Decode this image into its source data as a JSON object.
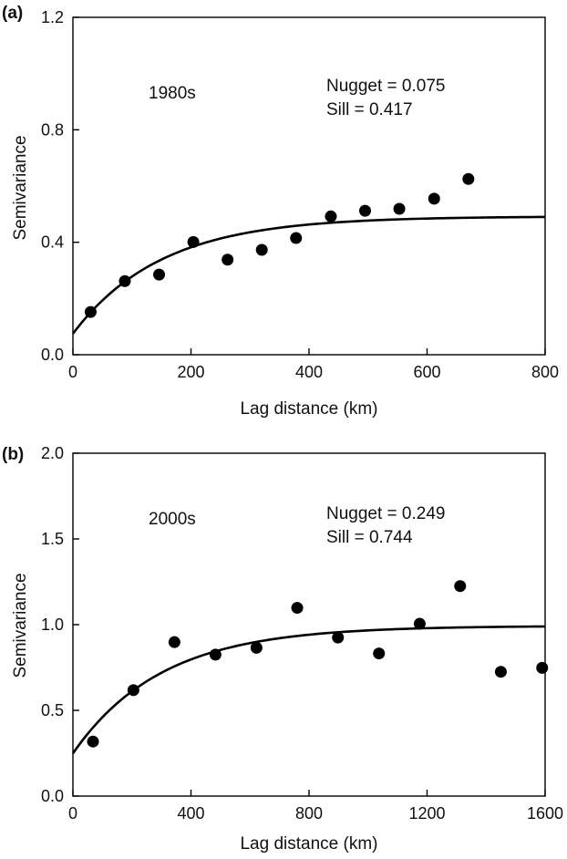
{
  "chart_data": [
    {
      "type": "scatter",
      "panel_label": "(a)",
      "period_label": "1980s",
      "annotations": [
        "Nugget = 0.075",
        "Sill = 0.417"
      ],
      "xlabel": "Lag distance (km)",
      "ylabel": "Semivariance",
      "xlim": [
        0,
        800
      ],
      "ylim": [
        0,
        1.2
      ],
      "x_ticks": [
        0,
        200,
        400,
        600,
        800
      ],
      "x_tick_labels": [
        "0",
        "200",
        "400",
        "600",
        "800"
      ],
      "y_ticks": [
        0.0,
        0.4,
        0.8,
        1.2
      ],
      "y_tick_labels": [
        "0.0",
        "0.4",
        "0.8",
        "1.2"
      ],
      "grid": false,
      "points": {
        "x": [
          30,
          88,
          146,
          204,
          262,
          320,
          378,
          437,
          495,
          553,
          612,
          670
        ],
        "y": [
          0.152,
          0.262,
          0.285,
          0.401,
          0.338,
          0.373,
          0.415,
          0.492,
          0.512,
          0.519,
          0.555,
          0.625
        ]
      },
      "fitted_curve": {
        "model": "exponential",
        "nugget": 0.075,
        "sill": 0.417,
        "range_parameter": 150
      },
      "colors": {
        "points": "#000000",
        "curve": "#000000",
        "axes": "#000000"
      }
    },
    {
      "type": "scatter",
      "panel_label": "(b)",
      "period_label": "2000s",
      "annotations": [
        "Nugget = 0.249",
        "Sill = 0.744"
      ],
      "xlabel": "Lag distance (km)",
      "ylabel": "Semivariance",
      "xlim": [
        0,
        1600
      ],
      "ylim": [
        0,
        2.0
      ],
      "x_ticks": [
        0,
        400,
        800,
        1200,
        1600
      ],
      "x_tick_labels": [
        "0",
        "400",
        "800",
        "1200",
        "1600"
      ],
      "y_ticks": [
        0.0,
        0.5,
        1.0,
        1.5,
        2.0
      ],
      "y_tick_labels": [
        "0.0",
        "0.5",
        "1.0",
        "1.5",
        "2.0"
      ],
      "grid": false,
      "points": {
        "x": [
          68,
          205,
          344,
          483,
          622,
          760,
          898,
          1037,
          1175,
          1312,
          1450,
          1590
        ],
        "y": [
          0.318,
          0.618,
          0.898,
          0.825,
          0.865,
          1.098,
          0.925,
          0.832,
          1.005,
          1.225,
          0.725,
          0.748
        ]
      },
      "fitted_curve": {
        "model": "exponential",
        "nugget": 0.249,
        "sill": 0.744,
        "range_parameter": 300
      },
      "colors": {
        "points": "#000000",
        "curve": "#000000",
        "axes": "#000000"
      }
    }
  ]
}
